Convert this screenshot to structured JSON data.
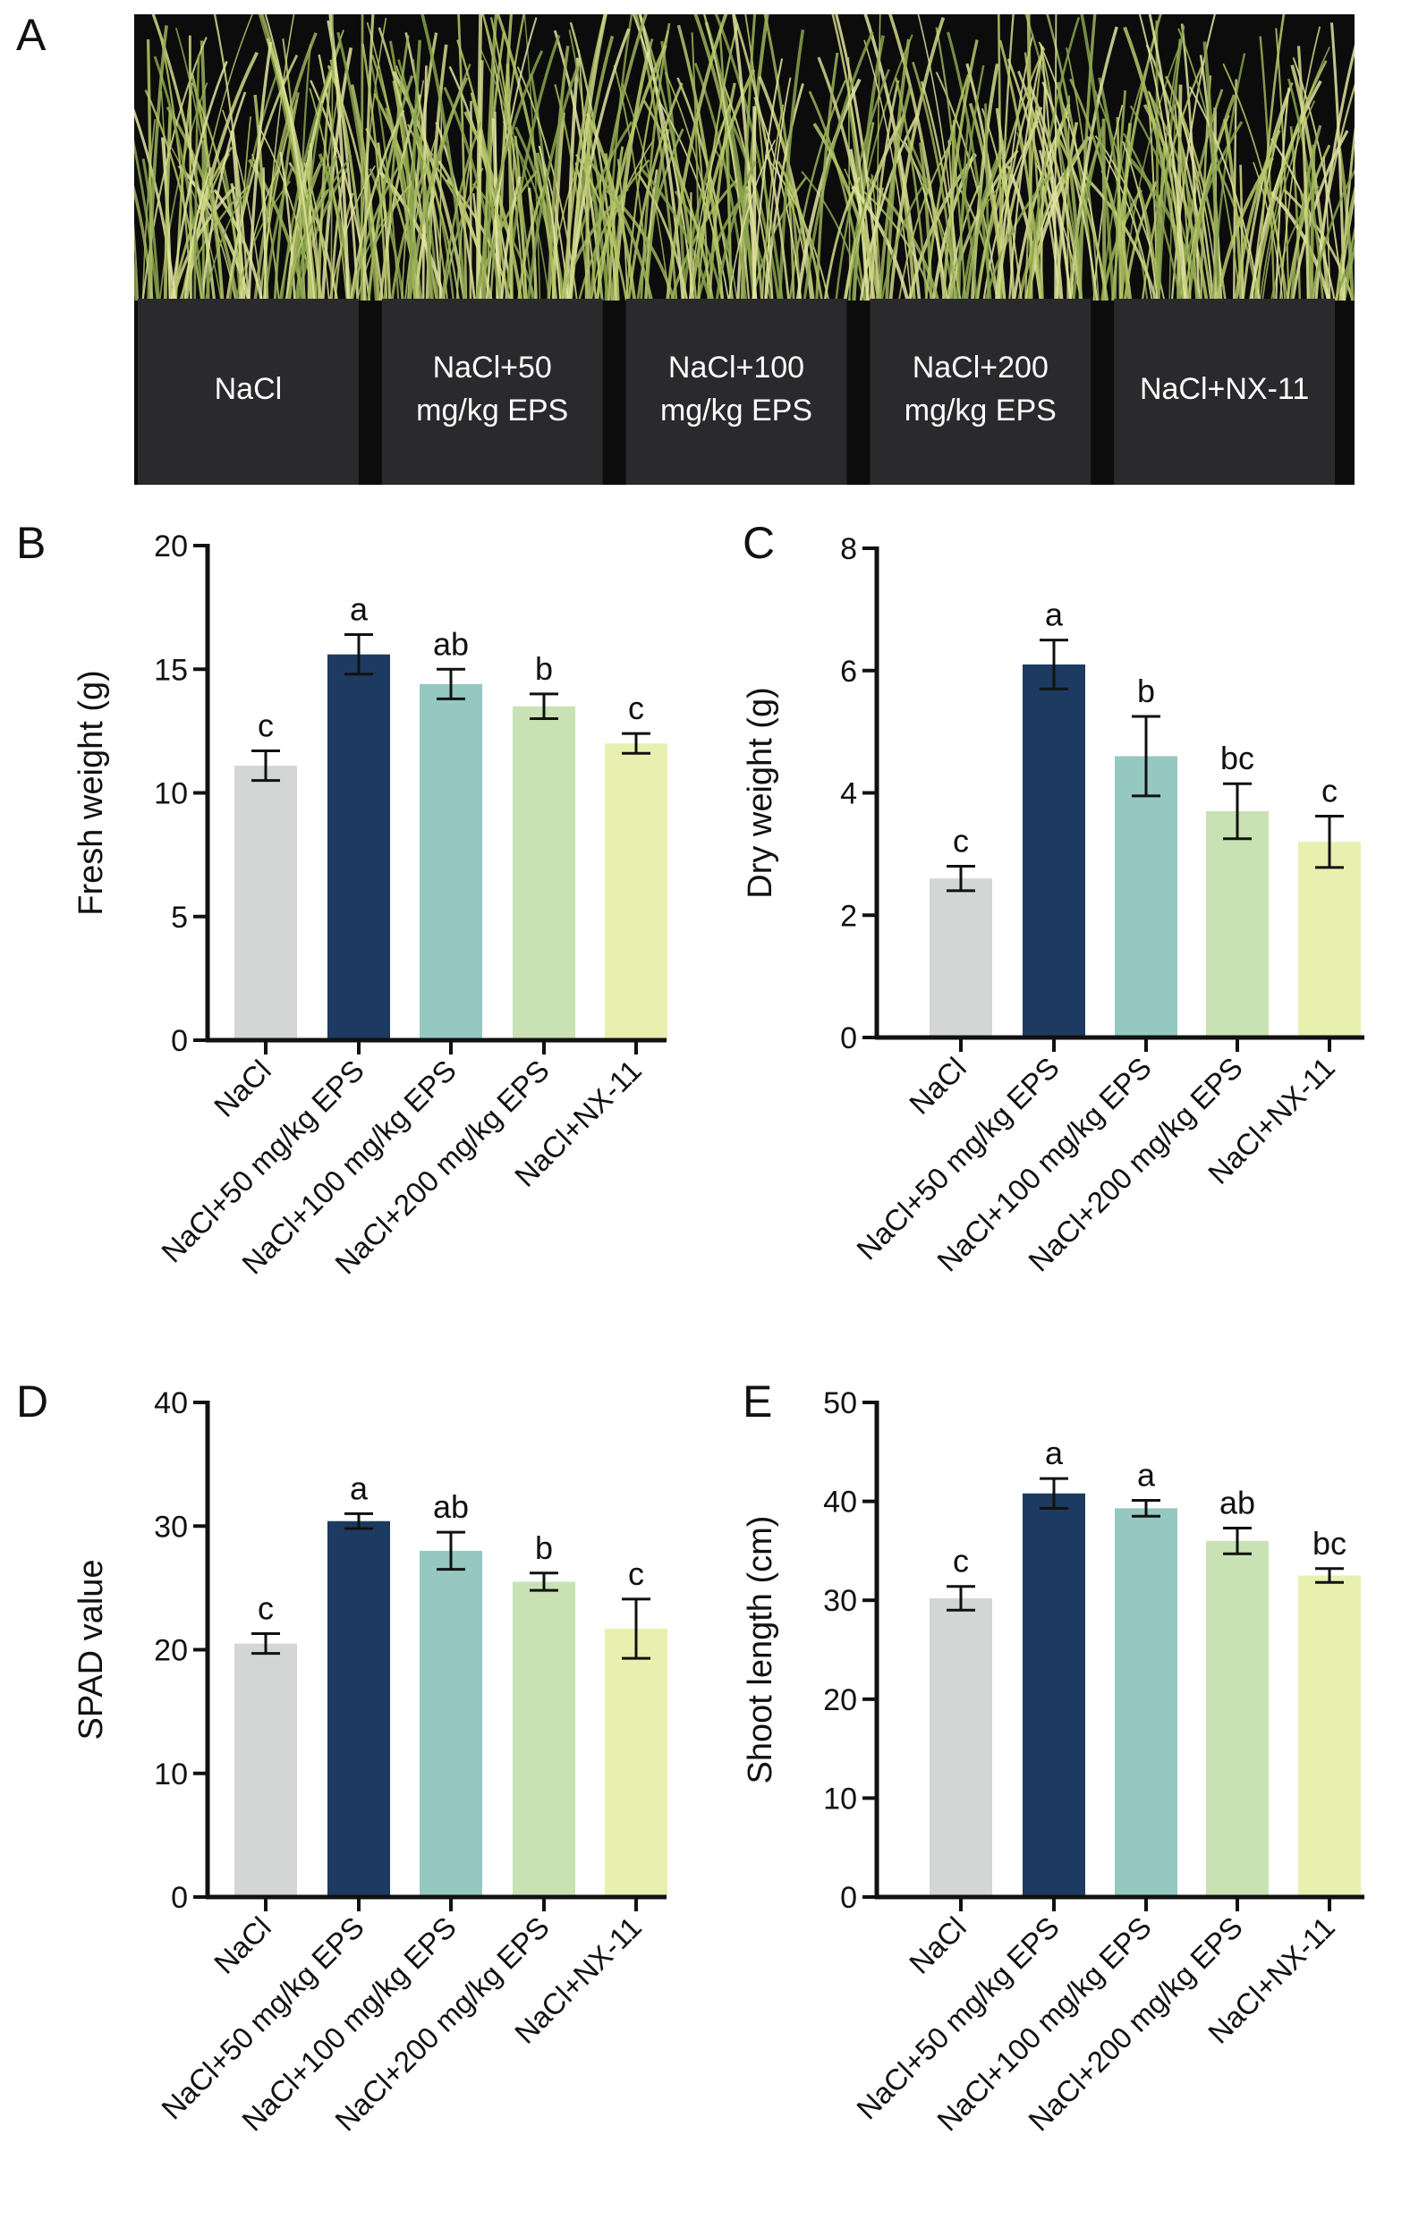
{
  "panels": {
    "A": "A",
    "B": "B",
    "C": "C",
    "D": "D",
    "E": "E"
  },
  "photo": {
    "pot_labels": [
      [
        "NaCl"
      ],
      [
        "NaCl+50",
        "mg/kg EPS"
      ],
      [
        "NaCl+100",
        "mg/kg EPS"
      ],
      [
        "NaCl+200",
        "mg/kg EPS"
      ],
      [
        "NaCl+NX-11"
      ]
    ]
  },
  "colors": [
    "#d4d6d5",
    "#1d3a60",
    "#95c8c0",
    "#c9e2b3",
    "#e8f0b0"
  ],
  "chart_data": [
    {
      "type": "bar",
      "panel": "B",
      "ylabel": "Fresh weight (g)",
      "ylim": [
        0,
        20
      ],
      "yticks": [
        0,
        5,
        10,
        15,
        20
      ],
      "categories": [
        "NaCl",
        "NaCl+50 mg/kg EPS",
        "NaCl+100 mg/kg EPS",
        "NaCl+200 mg/kg EPS",
        "NaCl+NX-11"
      ],
      "values": [
        11.1,
        15.6,
        14.4,
        13.5,
        12.0
      ],
      "errors": [
        0.6,
        0.8,
        0.6,
        0.5,
        0.4
      ],
      "letters": [
        "c",
        "a",
        "ab",
        "b",
        "c"
      ]
    },
    {
      "type": "bar",
      "panel": "C",
      "ylabel": "Dry weight (g)",
      "ylim": [
        0,
        8
      ],
      "yticks": [
        0,
        2,
        4,
        6,
        8
      ],
      "categories": [
        "NaCl",
        "NaCl+50 mg/kg EPS",
        "NaCl+100 mg/kg EPS",
        "NaCl+200 mg/kg EPS",
        "NaCl+NX-11"
      ],
      "values": [
        2.6,
        6.1,
        4.6,
        3.7,
        3.2
      ],
      "errors": [
        0.2,
        0.4,
        0.65,
        0.45,
        0.42
      ],
      "letters": [
        "c",
        "a",
        "b",
        "bc",
        "c"
      ]
    },
    {
      "type": "bar",
      "panel": "D",
      "ylabel": "SPAD value",
      "ylim": [
        0,
        40
      ],
      "yticks": [
        0,
        10,
        20,
        30,
        40
      ],
      "categories": [
        "NaCl",
        "NaCl+50 mg/kg EPS",
        "NaCl+100 mg/kg EPS",
        "NaCl+200 mg/kg EPS",
        "NaCl+NX-11"
      ],
      "values": [
        20.5,
        30.4,
        28.0,
        25.5,
        21.7
      ],
      "errors": [
        0.8,
        0.6,
        1.5,
        0.7,
        2.4
      ],
      "letters": [
        "c",
        "a",
        "ab",
        "b",
        "c"
      ]
    },
    {
      "type": "bar",
      "panel": "E",
      "ylabel": "Shoot length (cm)",
      "ylim": [
        0,
        50
      ],
      "yticks": [
        0,
        10,
        20,
        30,
        40,
        50
      ],
      "categories": [
        "NaCl",
        "NaCl+50 mg/kg EPS",
        "NaCl+100 mg/kg EPS",
        "NaCl+200 mg/kg EPS",
        "NaCl+NX-11"
      ],
      "values": [
        30.2,
        40.8,
        39.3,
        36.0,
        32.5
      ],
      "errors": [
        1.2,
        1.5,
        0.8,
        1.3,
        0.7
      ],
      "letters": [
        "c",
        "a",
        "a",
        "ab",
        "bc"
      ]
    }
  ]
}
